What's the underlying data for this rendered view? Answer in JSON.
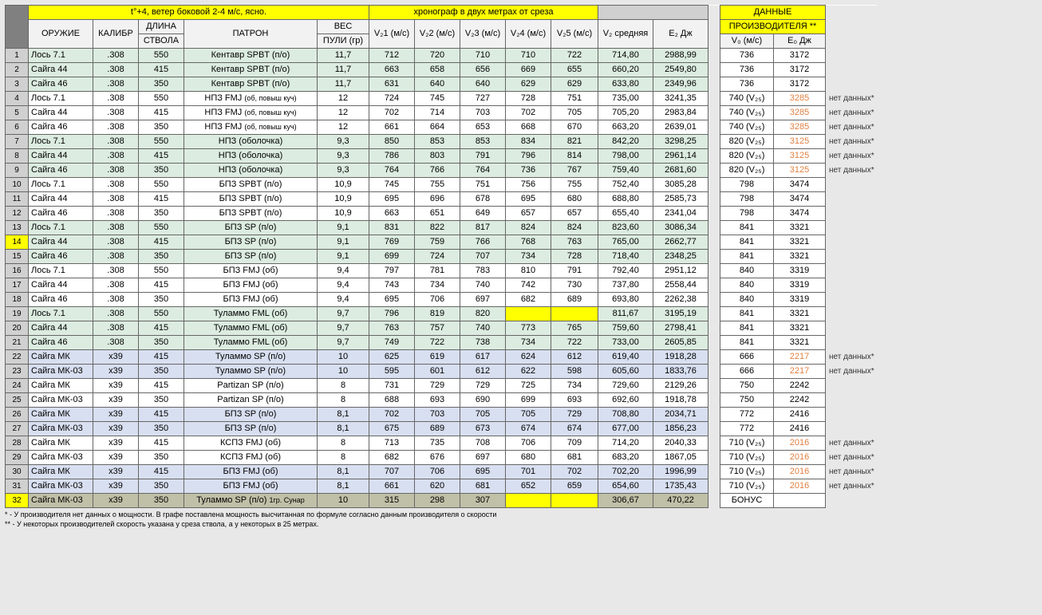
{
  "headers": {
    "main_top_left": "t°+4, ветер боковой 2-4 м/с, ясно.",
    "main_top_mid": "хронограф в двух метрах от среза",
    "right_top1": "ДАННЫЕ",
    "right_top2": "ПРОИЗВОДИТЕЛЯ **",
    "c_weapon": "ОРУЖИЕ",
    "c_caliber": "КАЛИБР",
    "c_barrel1": "ДЛИНА",
    "c_barrel2": "СТВОЛА",
    "c_cartridge": "ПАТРОН",
    "c_weight1": "ВЕС",
    "c_weight2": "ПУЛИ (гр)",
    "c_v1": "V₂1 (м/с)",
    "c_v2": "V₂2 (м/с)",
    "c_v3": "V₂3 (м/с)",
    "c_v4": "V₂4 (м/с)",
    "c_v5": "V₂5 (м/с)",
    "c_vavg": "V₂ средняя",
    "c_e2": "E₂ Дж",
    "c_v0": "V₀ (м/с)",
    "c_e0": "E₀  Дж"
  },
  "footnotes": {
    "f1": "*  -  У производителя нет данных о мощности. В графе поставлена мощность высчитанная по формуле согласно данным производителя о скорости",
    "f2": "** -  У некоторых производителей скорость указана у среза ствола, а у некоторых в 25 метрах."
  },
  "note_nd": "нет данных*",
  "rows": [
    {
      "n": "1",
      "band": "g",
      "w": "Лось 7.1",
      "cal": ".308",
      "bl": "550",
      "car": "Кентавр SPBT (п/о)",
      "wt": "11,7",
      "v": [
        "712",
        "720",
        "710",
        "710",
        "722"
      ],
      "va": "714,80",
      "e2": "2988,99",
      "v0": "736",
      "e0": "3172",
      "eo": false,
      "nd": false
    },
    {
      "n": "2",
      "band": "g",
      "w": "Сайга 44",
      "cal": ".308",
      "bl": "415",
      "car": "Кентавр SPBT (п/о)",
      "wt": "11,7",
      "v": [
        "663",
        "658",
        "656",
        "669",
        "655"
      ],
      "va": "660,20",
      "e2": "2549,80",
      "v0": "736",
      "e0": "3172",
      "eo": false,
      "nd": false
    },
    {
      "n": "3",
      "band": "g",
      "w": "Сайга 46",
      "cal": ".308",
      "bl": "350",
      "car": "Кентавр SPBT (п/о)",
      "wt": "11,7",
      "v": [
        "631",
        "640",
        "640",
        "629",
        "629"
      ],
      "va": "633,80",
      "e2": "2349,96",
      "v0": "736",
      "e0": "3172",
      "eo": false,
      "nd": false
    },
    {
      "n": "4",
      "band": "",
      "w": "Лось 7.1",
      "cal": ".308",
      "bl": "550",
      "car": "НПЗ FMJ (об, повыш куч)",
      "pns": true,
      "wt": "12",
      "v": [
        "724",
        "745",
        "727",
        "728",
        "751"
      ],
      "va": "735,00",
      "e2": "3241,35",
      "v0": "740 (V₂₅)",
      "e0": "3285",
      "eo": true,
      "nd": true
    },
    {
      "n": "5",
      "band": "",
      "w": "Сайга 44",
      "cal": ".308",
      "bl": "415",
      "car": "НПЗ FMJ (об, повыш куч)",
      "pns": true,
      "wt": "12",
      "v": [
        "702",
        "714",
        "703",
        "702",
        "705"
      ],
      "va": "705,20",
      "e2": "2983,84",
      "v0": "740 (V₂₅)",
      "e0": "3285",
      "eo": true,
      "nd": true
    },
    {
      "n": "6",
      "band": "",
      "w": "Сайга 46",
      "cal": ".308",
      "bl": "350",
      "car": "НПЗ FMJ (об, повыш куч)",
      "pns": true,
      "wt": "12",
      "v": [
        "661",
        "664",
        "653",
        "668",
        "670"
      ],
      "va": "663,20",
      "e2": "2639,01",
      "v0": "740 (V₂₅)",
      "e0": "3285",
      "eo": true,
      "nd": true
    },
    {
      "n": "7",
      "band": "g",
      "w": "Лось 7.1",
      "cal": ".308",
      "bl": "550",
      "car": "НПЗ (оболочка)",
      "wt": "9,3",
      "v": [
        "850",
        "853",
        "853",
        "834",
        "821"
      ],
      "va": "842,20",
      "e2": "3298,25",
      "v0": "820 (V₂₅)",
      "e0": "3125",
      "eo": true,
      "nd": true
    },
    {
      "n": "8",
      "band": "g",
      "w": "Сайга 44",
      "cal": ".308",
      "bl": "415",
      "car": "НПЗ (оболочка)",
      "wt": "9,3",
      "v": [
        "786",
        "803",
        "791",
        "796",
        "814"
      ],
      "va": "798,00",
      "e2": "2961,14",
      "v0": "820 (V₂₅)",
      "e0": "3125",
      "eo": true,
      "nd": true
    },
    {
      "n": "9",
      "band": "g",
      "w": "Сайга 46",
      "cal": ".308",
      "bl": "350",
      "car": "НПЗ (оболочка)",
      "wt": "9,3",
      "v": [
        "764",
        "766",
        "764",
        "736",
        "767"
      ],
      "va": "759,40",
      "e2": "2681,60",
      "v0": "820 (V₂₅)",
      "e0": "3125",
      "eo": true,
      "nd": true
    },
    {
      "n": "10",
      "band": "",
      "w": "Лось 7.1",
      "cal": ".308",
      "bl": "550",
      "car": "БПЗ SPBT (п/о)",
      "wt": "10,9",
      "v": [
        "745",
        "755",
        "751",
        "756",
        "755"
      ],
      "va": "752,40",
      "e2": "3085,28",
      "v0": "798",
      "e0": "3474",
      "eo": false,
      "nd": false
    },
    {
      "n": "11",
      "band": "",
      "w": "Сайга 44",
      "cal": ".308",
      "bl": "415",
      "car": "БПЗ SPBT (п/о)",
      "wt": "10,9",
      "v": [
        "695",
        "696",
        "678",
        "695",
        "680"
      ],
      "va": "688,80",
      "e2": "2585,73",
      "v0": "798",
      "e0": "3474",
      "eo": false,
      "nd": false
    },
    {
      "n": "12",
      "band": "",
      "w": "Сайга 46",
      "cal": ".308",
      "bl": "350",
      "car": "БПЗ SPBT (п/о)",
      "wt": "10,9",
      "v": [
        "663",
        "651",
        "649",
        "657",
        "657"
      ],
      "va": "655,40",
      "e2": "2341,04",
      "v0": "798",
      "e0": "3474",
      "eo": false,
      "nd": false
    },
    {
      "n": "13",
      "band": "g",
      "w": "Лось 7.1",
      "cal": ".308",
      "bl": "550",
      "car": "БПЗ SP (п/о)",
      "wt": "9,1",
      "v": [
        "831",
        "822",
        "817",
        "824",
        "824"
      ],
      "va": "823,60",
      "e2": "3086,34",
      "v0": "841",
      "e0": "3321",
      "eo": false,
      "nd": false
    },
    {
      "n": "14",
      "band": "g",
      "farleft": "y",
      "w": "Сайга 44",
      "cal": ".308",
      "bl": "415",
      "car": "БПЗ SP (п/о)",
      "wt": "9,1",
      "v": [
        "769",
        "759",
        "766",
        "768",
        "763"
      ],
      "va": "765,00",
      "e2": "2662,77",
      "v0": "841",
      "e0": "3321",
      "eo": false,
      "nd": false
    },
    {
      "n": "15",
      "band": "g",
      "w": "Сайга 46",
      "cal": ".308",
      "bl": "350",
      "car": "БПЗ SP (п/о)",
      "wt": "9,1",
      "v": [
        "699",
        "724",
        "707",
        "734",
        "728"
      ],
      "va": "718,40",
      "e2": "2348,25",
      "v0": "841",
      "e0": "3321",
      "eo": false,
      "nd": false
    },
    {
      "n": "16",
      "band": "",
      "w": "Лось 7.1",
      "cal": ".308",
      "bl": "550",
      "car": "БПЗ FMJ (об)",
      "wt": "9,4",
      "v": [
        "797",
        "781",
        "783",
        "810",
        "791"
      ],
      "va": "792,40",
      "e2": "2951,12",
      "v0": "840",
      "e0": "3319",
      "eo": false,
      "nd": false
    },
    {
      "n": "17",
      "band": "",
      "w": "Сайга 44",
      "cal": ".308",
      "bl": "415",
      "car": "БПЗ FMJ (об)",
      "wt": "9,4",
      "v": [
        "743",
        "734",
        "740",
        "742",
        "730"
      ],
      "va": "737,80",
      "e2": "2558,44",
      "v0": "840",
      "e0": "3319",
      "eo": false,
      "nd": false
    },
    {
      "n": "18",
      "band": "",
      "w": "Сайга 46",
      "cal": ".308",
      "bl": "350",
      "car": "БПЗ FMJ (об)",
      "wt": "9,4",
      "v": [
        "695",
        "706",
        "697",
        "682",
        "689"
      ],
      "va": "693,80",
      "e2": "2262,38",
      "v0": "840",
      "e0": "3319",
      "eo": false,
      "nd": false
    },
    {
      "n": "19",
      "band": "g",
      "w": "Лось 7.1",
      "cal": ".308",
      "bl": "550",
      "car": "Туламмо FML (об)",
      "wt": "9,7",
      "v": [
        "796",
        "819",
        "820",
        "",
        ""
      ],
      "vy": [
        false,
        false,
        false,
        true,
        true
      ],
      "va": "811,67",
      "e2": "3195,19",
      "v0": "841",
      "e0": "3321",
      "eo": false,
      "nd": false
    },
    {
      "n": "20",
      "band": "g",
      "w": "Сайга 44",
      "cal": ".308",
      "bl": "415",
      "car": "Туламмо FML (об)",
      "wt": "9,7",
      "v": [
        "763",
        "757",
        "740",
        "773",
        "765"
      ],
      "va": "759,60",
      "e2": "2798,41",
      "v0": "841",
      "e0": "3321",
      "eo": false,
      "nd": false
    },
    {
      "n": "21",
      "band": "g",
      "w": "Сайга 46",
      "cal": ".308",
      "bl": "350",
      "car": "Туламмо FML (об)",
      "wt": "9,7",
      "v": [
        "749",
        "722",
        "738",
        "734",
        "722"
      ],
      "va": "733,00",
      "e2": "2605,85",
      "v0": "841",
      "e0": "3321",
      "eo": false,
      "nd": false
    },
    {
      "n": "22",
      "band": "b",
      "w": "Сайга МК",
      "cal": "х39",
      "bl": "415",
      "car": "Туламмо SP (п/о)",
      "wt": "10",
      "v": [
        "625",
        "619",
        "617",
        "624",
        "612"
      ],
      "va": "619,40",
      "e2": "1918,28",
      "v0": "666",
      "e0": "2217",
      "eo": true,
      "nd": true
    },
    {
      "n": "23",
      "band": "b",
      "w": "Сайга МК-03",
      "cal": "х39",
      "bl": "350",
      "car": "Туламмо SP (п/о)",
      "wt": "10",
      "v": [
        "595",
        "601",
        "612",
        "622",
        "598"
      ],
      "va": "605,60",
      "e2": "1833,76",
      "v0": "666",
      "e0": "2217",
      "eo": true,
      "nd": true
    },
    {
      "n": "24",
      "band": "",
      "w": "Сайга МК",
      "cal": "х39",
      "bl": "415",
      "car": "Partizan SP (п/о)",
      "wt": "8",
      "v": [
        "731",
        "729",
        "729",
        "725",
        "734"
      ],
      "va": "729,60",
      "e2": "2129,26",
      "v0": "750",
      "e0": "2242",
      "eo": false,
      "nd": false
    },
    {
      "n": "25",
      "band": "",
      "w": "Сайга МК-03",
      "cal": "х39",
      "bl": "350",
      "car": "Partizan SP (п/о)",
      "wt": "8",
      "v": [
        "688",
        "693",
        "690",
        "699",
        "693"
      ],
      "va": "692,60",
      "e2": "1918,78",
      "v0": "750",
      "e0": "2242",
      "eo": false,
      "nd": false
    },
    {
      "n": "26",
      "band": "b",
      "w": "Сайга МК",
      "cal": "х39",
      "bl": "415",
      "car": "БПЗ SP (п/о)",
      "wt": "8,1",
      "v": [
        "702",
        "703",
        "705",
        "705",
        "729"
      ],
      "va": "708,80",
      "e2": "2034,71",
      "v0": "772",
      "e0": "2416",
      "eo": false,
      "nd": false
    },
    {
      "n": "27",
      "band": "b",
      "w": "Сайга МК-03",
      "cal": "х39",
      "bl": "350",
      "car": "БПЗ SP (п/о)",
      "wt": "8,1",
      "v": [
        "675",
        "689",
        "673",
        "674",
        "674"
      ],
      "va": "677,00",
      "e2": "1856,23",
      "v0": "772",
      "e0": "2416",
      "eo": false,
      "nd": false
    },
    {
      "n": "28",
      "band": "",
      "w": "Сайга МК",
      "cal": "х39",
      "bl": "415",
      "car": "КСПЗ FMJ (об)",
      "wt": "8",
      "v": [
        "713",
        "735",
        "708",
        "706",
        "709"
      ],
      "va": "714,20",
      "e2": "2040,33",
      "v0": "710 (V₂₅)",
      "e0": "2016",
      "eo": true,
      "nd": true
    },
    {
      "n": "29",
      "band": "",
      "w": "Сайга МК-03",
      "cal": "х39",
      "bl": "350",
      "car": "КСПЗ FMJ (об)",
      "wt": "8",
      "v": [
        "682",
        "676",
        "697",
        "680",
        "681"
      ],
      "va": "683,20",
      "e2": "1867,05",
      "v0": "710 (V₂₅)",
      "e0": "2016",
      "eo": true,
      "nd": true
    },
    {
      "n": "30",
      "band": "b",
      "w": "Сайга МК",
      "cal": "х39",
      "bl": "415",
      "car": "БПЗ FMJ (об)",
      "wt": "8,1",
      "v": [
        "707",
        "706",
        "695",
        "701",
        "702"
      ],
      "va": "702,20",
      "e2": "1996,99",
      "v0": "710 (V₂₅)",
      "e0": "2016",
      "eo": true,
      "nd": true
    },
    {
      "n": "31",
      "band": "b",
      "w": "Сайга МК-03",
      "cal": "х39",
      "bl": "350",
      "car": "БПЗ FMJ (об)",
      "wt": "8,1",
      "v": [
        "661",
        "620",
        "681",
        "652",
        "659"
      ],
      "va": "654,60",
      "e2": "1735,43",
      "v0": "710 (V₂₅)",
      "e0": "2016",
      "eo": true,
      "nd": true
    },
    {
      "n": "32",
      "band": "dg",
      "farleft": "y",
      "w": "Сайга МК-03",
      "cal": "х39",
      "bl": "350",
      "car": "Туламмо SP (п/о) 1гр. Сунар",
      "pns": true,
      "wt": "10",
      "v": [
        "315",
        "298",
        "307",
        "",
        ""
      ],
      "vy": [
        false,
        false,
        false,
        true,
        true
      ],
      "va": "306,67",
      "e2": "470,22",
      "v0": "БОНУС",
      "e0": "",
      "eo": false,
      "nd": false
    }
  ]
}
